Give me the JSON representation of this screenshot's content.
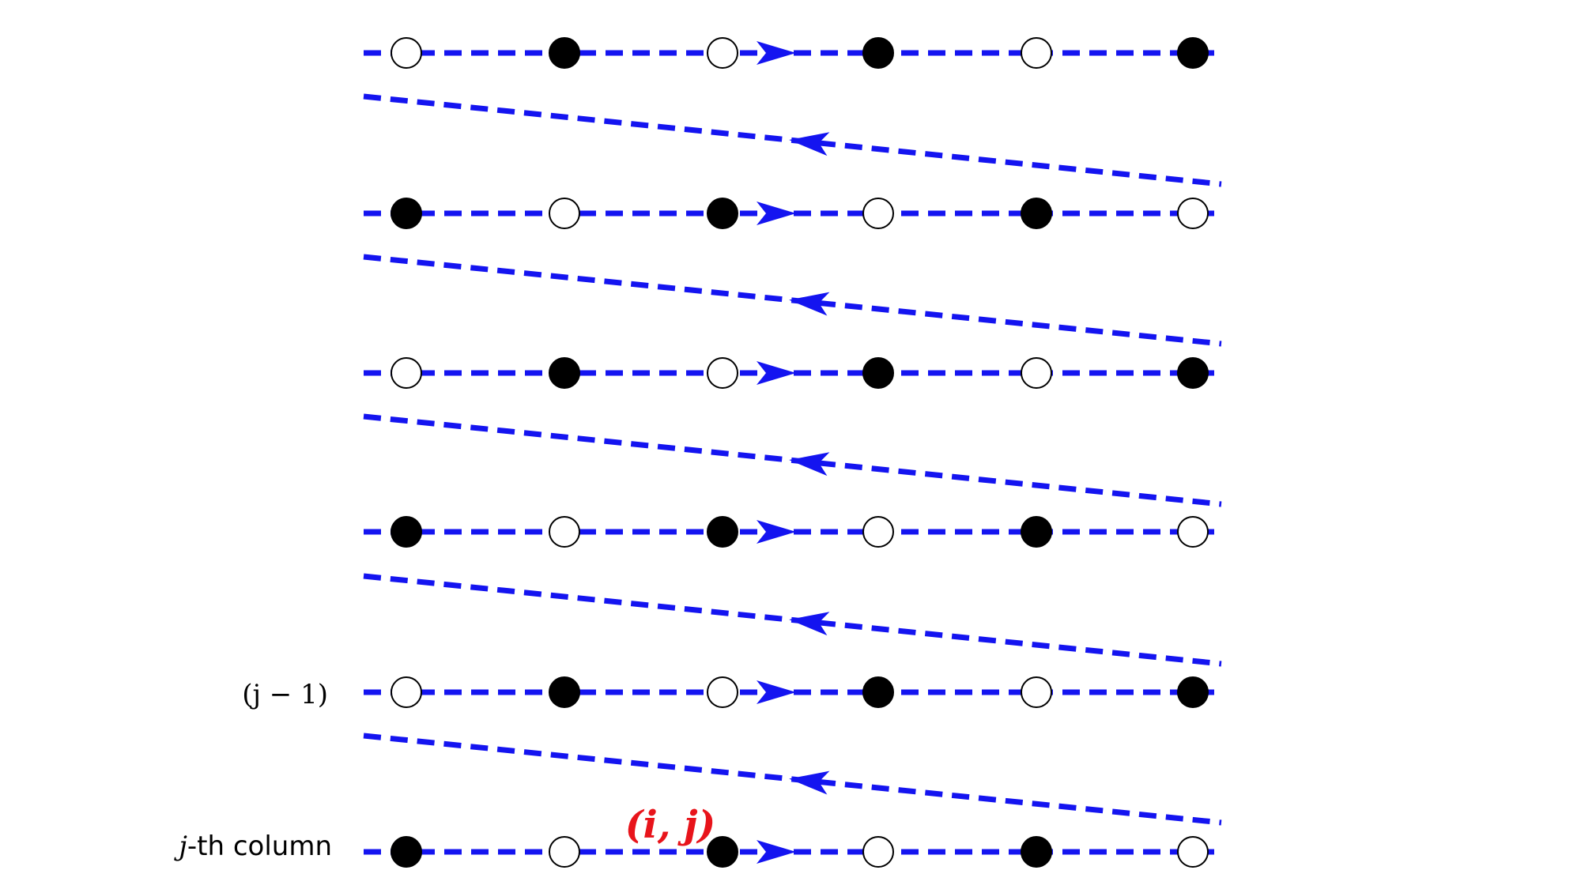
{
  "colors": {
    "path": "#1414f0",
    "filled_node": "#000000",
    "empty_node": "#ffffff",
    "node_outline": "#000000",
    "highlight": "#e8141b"
  },
  "labels": {
    "row_j_minus_1": "(j − 1)",
    "row_j_prefix": "j",
    "row_j_suffix": "-th column",
    "highlight_node": "(i, j)"
  },
  "grid": {
    "rows": 6,
    "columns": 6,
    "highlight_row": 6,
    "highlight_column": 3,
    "node_pattern": [
      [
        "empty",
        "filled",
        "empty",
        "filled",
        "empty",
        "filled"
      ],
      [
        "filled",
        "empty",
        "filled",
        "empty",
        "filled",
        "empty"
      ],
      [
        "empty",
        "filled",
        "empty",
        "filled",
        "empty",
        "filled"
      ],
      [
        "filled",
        "empty",
        "filled",
        "empty",
        "filled",
        "empty"
      ],
      [
        "empty",
        "filled",
        "empty",
        "filled",
        "empty",
        "filled"
      ],
      [
        "filled",
        "empty",
        "filled",
        "empty",
        "filled",
        "empty"
      ]
    ]
  }
}
